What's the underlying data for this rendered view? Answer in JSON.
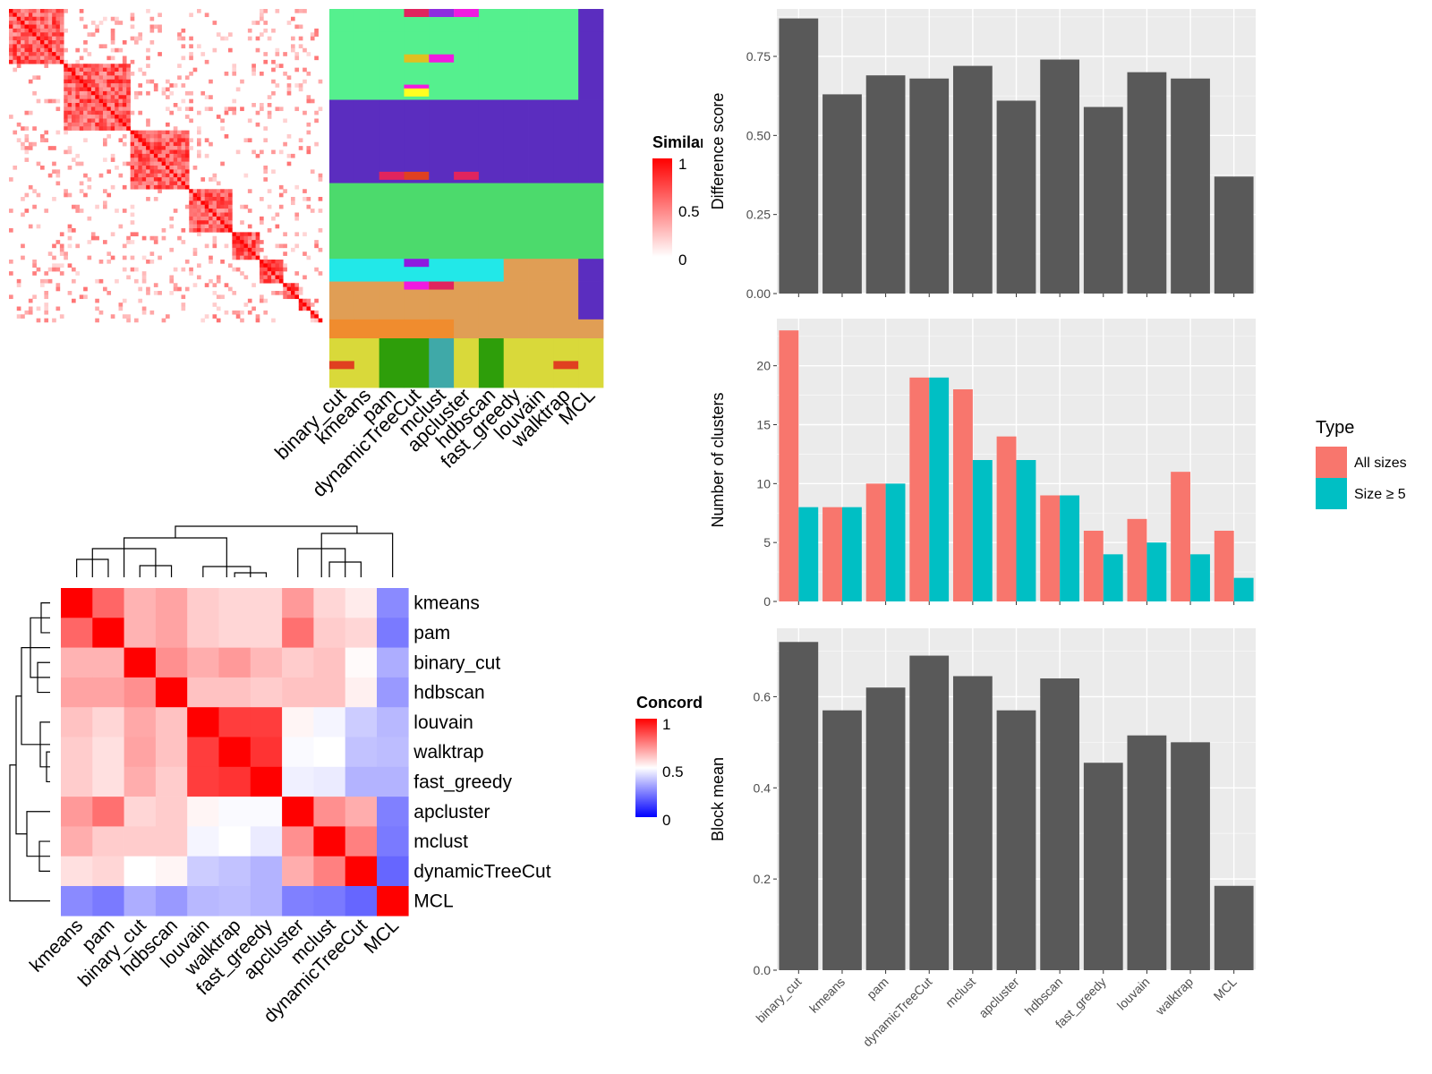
{
  "chart_data": [
    {
      "type": "heatmap",
      "title": "",
      "legend": {
        "title": "Similarity",
        "ticks": [
          "1",
          "0.5",
          "0"
        ],
        "colors": [
          "#FFFFFF",
          "#FF0000"
        ],
        "position": "right"
      },
      "columns": [
        "binary_cut",
        "kmeans",
        "pam",
        "dynamicTreeCut",
        "mclust",
        "apcluster",
        "hdbscan",
        "fast_greedy",
        "louvain",
        "walktrap",
        "MCL"
      ],
      "diagonal_block_fractions": [
        0.18,
        0.21,
        0.19,
        0.13,
        0.09,
        0.07,
        0.05,
        0.04,
        0.03,
        0.01
      ]
    },
    {
      "type": "heatmap",
      "title": "",
      "rows": [
        "kmeans",
        "pam",
        "binary_cut",
        "hdbscan",
        "louvain",
        "walktrap",
        "fast_greedy",
        "apcluster",
        "mclust",
        "dynamicTreeCut",
        "MCL"
      ],
      "columns": [
        "kmeans",
        "pam",
        "binary_cut",
        "hdbscan",
        "louvain",
        "walktrap",
        "fast_greedy",
        "apcluster",
        "mclust",
        "dynamicTreeCut",
        "MCL"
      ],
      "legend": {
        "title": "Concordance",
        "ticks": [
          "1",
          "0.5",
          "0"
        ],
        "colors": [
          "#0000FF",
          "#FFFFFF",
          "#FF0000"
        ],
        "position": "right"
      },
      "values": [
        [
          1.0,
          0.8,
          0.65,
          0.68,
          0.6,
          0.58,
          0.58,
          0.7,
          0.58,
          0.54,
          0.27
        ],
        [
          0.8,
          1.0,
          0.65,
          0.68,
          0.6,
          0.58,
          0.58,
          0.78,
          0.6,
          0.58,
          0.24
        ],
        [
          0.65,
          0.65,
          1.0,
          0.72,
          0.66,
          0.7,
          0.64,
          0.6,
          0.62,
          0.51,
          0.34
        ],
        [
          0.68,
          0.68,
          0.72,
          1.0,
          0.62,
          0.62,
          0.6,
          0.62,
          0.62,
          0.53,
          0.3
        ],
        [
          0.62,
          0.58,
          0.67,
          0.62,
          1.0,
          0.88,
          0.88,
          0.52,
          0.48,
          0.4,
          0.36
        ],
        [
          0.6,
          0.56,
          0.68,
          0.62,
          0.88,
          1.0,
          0.9,
          0.49,
          0.5,
          0.38,
          0.37
        ],
        [
          0.6,
          0.56,
          0.66,
          0.6,
          0.88,
          0.9,
          1.0,
          0.47,
          0.46,
          0.35,
          0.35
        ],
        [
          0.7,
          0.78,
          0.58,
          0.6,
          0.52,
          0.49,
          0.49,
          1.0,
          0.72,
          0.66,
          0.25
        ],
        [
          0.66,
          0.6,
          0.6,
          0.6,
          0.48,
          0.5,
          0.46,
          0.72,
          1.0,
          0.75,
          0.24
        ],
        [
          0.56,
          0.58,
          0.5,
          0.52,
          0.4,
          0.38,
          0.35,
          0.66,
          0.75,
          1.0,
          0.2
        ],
        [
          0.27,
          0.24,
          0.34,
          0.3,
          0.36,
          0.37,
          0.35,
          0.25,
          0.24,
          0.2,
          1.0
        ]
      ]
    },
    {
      "type": "bar",
      "categories": [
        "binary_cut",
        "kmeans",
        "pam",
        "dynamicTreeCut",
        "mclust",
        "apcluster",
        "hdbscan",
        "fast_greedy",
        "louvain",
        "walktrap",
        "MCL"
      ],
      "values": [
        0.87,
        0.63,
        0.69,
        0.68,
        0.72,
        0.61,
        0.74,
        0.59,
        0.7,
        0.68,
        0.37
      ],
      "xlabel": "",
      "ylabel": "Difference score",
      "ylim": [
        0,
        0.9
      ],
      "yticks": [
        "0.00",
        "0.25",
        "0.50",
        "0.75"
      ],
      "bar_color": "#595959",
      "grid": true
    },
    {
      "type": "bar",
      "categories": [
        "binary_cut",
        "kmeans",
        "pam",
        "dynamicTreeCut",
        "mclust",
        "apcluster",
        "hdbscan",
        "fast_greedy",
        "louvain",
        "walktrap",
        "MCL"
      ],
      "series": [
        {
          "name": "All sizes",
          "color": "#F8766D",
          "values": [
            23,
            8,
            10,
            19,
            18,
            14,
            9,
            6,
            7,
            11,
            6
          ]
        },
        {
          "name": "Size ≥ 5",
          "color": "#00BFC4",
          "values": [
            8,
            8,
            10,
            19,
            12,
            12,
            9,
            4,
            5,
            4,
            2
          ]
        }
      ],
      "xlabel": "",
      "ylabel": "Number of clusters",
      "ylim": [
        0,
        24
      ],
      "yticks": [
        "0",
        "5",
        "10",
        "15",
        "20"
      ],
      "legend": {
        "title": "Type",
        "position": "right"
      },
      "grid": true
    },
    {
      "type": "bar",
      "categories": [
        "binary_cut",
        "kmeans",
        "pam",
        "dynamicTreeCut",
        "mclust",
        "apcluster",
        "hdbscan",
        "fast_greedy",
        "louvain",
        "walktrap",
        "MCL"
      ],
      "values": [
        0.72,
        0.57,
        0.62,
        0.69,
        0.645,
        0.57,
        0.64,
        0.455,
        0.515,
        0.5,
        0.185
      ],
      "xlabel": "",
      "ylabel": "Block mean",
      "ylim": [
        0,
        0.75
      ],
      "yticks": [
        "0.0",
        "0.2",
        "0.4",
        "0.6"
      ],
      "bar_color": "#595959",
      "grid": true
    }
  ],
  "palette": {
    "panel_bg": "#EBEBEB",
    "grid": "#FFFFFF",
    "bar": "#595959",
    "partition_colors": [
      "#55F08E",
      "#5B2DBF",
      "#4CDA6C",
      "#22E8E8",
      "#E09E55",
      "#F08C2E",
      "#D9D93A",
      "#2E9E0A",
      "#F01AE0",
      "#E0245E",
      "#3E6FE0"
    ]
  }
}
